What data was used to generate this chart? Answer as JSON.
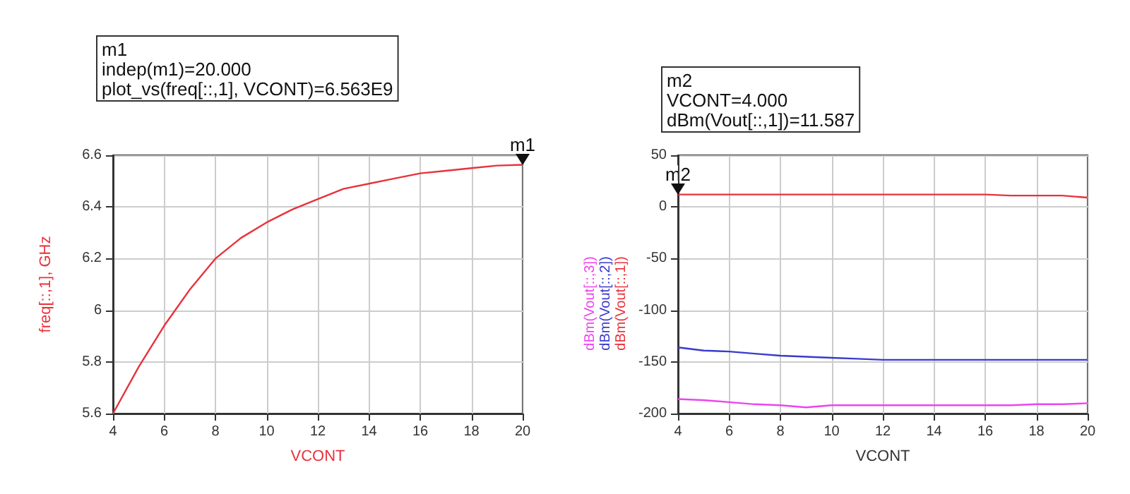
{
  "chart_data": [
    {
      "type": "line",
      "xlabel": "VCONT",
      "ylabel": "freq[::,1], GHz",
      "x": [
        4,
        5,
        6,
        7,
        8,
        9,
        10,
        11,
        12,
        13,
        14,
        15,
        16,
        17,
        18,
        19,
        20
      ],
      "series": [
        {
          "color": "#e8323c",
          "values": [
            5.6,
            5.78,
            5.94,
            6.08,
            6.2,
            6.28,
            6.34,
            6.39,
            6.43,
            6.47,
            6.49,
            6.51,
            6.53,
            6.54,
            6.55,
            6.56,
            6.563
          ]
        }
      ],
      "xlim": [
        4,
        20
      ],
      "xticks": [
        4,
        6,
        8,
        10,
        12,
        14,
        16,
        18,
        20
      ],
      "ylim": [
        5.6,
        6.6
      ],
      "yticks": [
        5.6,
        5.8,
        6.0,
        6.2,
        6.4,
        6.6
      ],
      "grid": true,
      "legend": false,
      "marker": "none",
      "annotations": [
        "m1\nindep(m1)=20.000\nplot_vs(freq[::,1], VCONT)=6.563E9",
        {
          "text": "m1",
          "x": 20,
          "y": 6.563
        }
      ]
    },
    {
      "type": "line",
      "xlabel": "VCONT",
      "x": [
        4,
        5,
        6,
        7,
        8,
        9,
        10,
        11,
        12,
        13,
        14,
        15,
        16,
        17,
        18,
        19,
        20
      ],
      "series": [
        {
          "name": "dBm(Vout[::,1])",
          "color": "#e8323c",
          "values": [
            12,
            12,
            12,
            12,
            12,
            12,
            12,
            12,
            12,
            12,
            12,
            12,
            12,
            11,
            11,
            11,
            9
          ]
        },
        {
          "name": "dBm(Vout[::,2])",
          "color": "#3a3acc",
          "values": [
            -136,
            -139,
            -140,
            -142,
            -144,
            -145,
            -146,
            -147,
            -148,
            -148,
            -148,
            -148,
            -148,
            -148,
            -148,
            -148,
            -148
          ]
        },
        {
          "name": "dBm(Vout[::,3])",
          "color": "#ee44ee",
          "values": [
            -186,
            -187,
            -189,
            -191,
            -192,
            -194,
            -192,
            -192,
            -192,
            -192,
            -192,
            -192,
            -192,
            -192,
            -191,
            -191,
            -190
          ]
        }
      ],
      "xlim": [
        4,
        20
      ],
      "xticks": [
        4,
        6,
        8,
        10,
        12,
        14,
        16,
        18,
        20
      ],
      "ylim": [
        -200,
        50
      ],
      "yticks": [
        -200,
        -150,
        -100,
        -50,
        0,
        50
      ],
      "grid": true,
      "legend": false,
      "marker": "none",
      "annotations": [
        "m2\nVCONT=4.000\ndBm(Vout[::,1])=11.587",
        {
          "text": "m2",
          "x": 4,
          "y": 11.587
        }
      ]
    }
  ]
}
